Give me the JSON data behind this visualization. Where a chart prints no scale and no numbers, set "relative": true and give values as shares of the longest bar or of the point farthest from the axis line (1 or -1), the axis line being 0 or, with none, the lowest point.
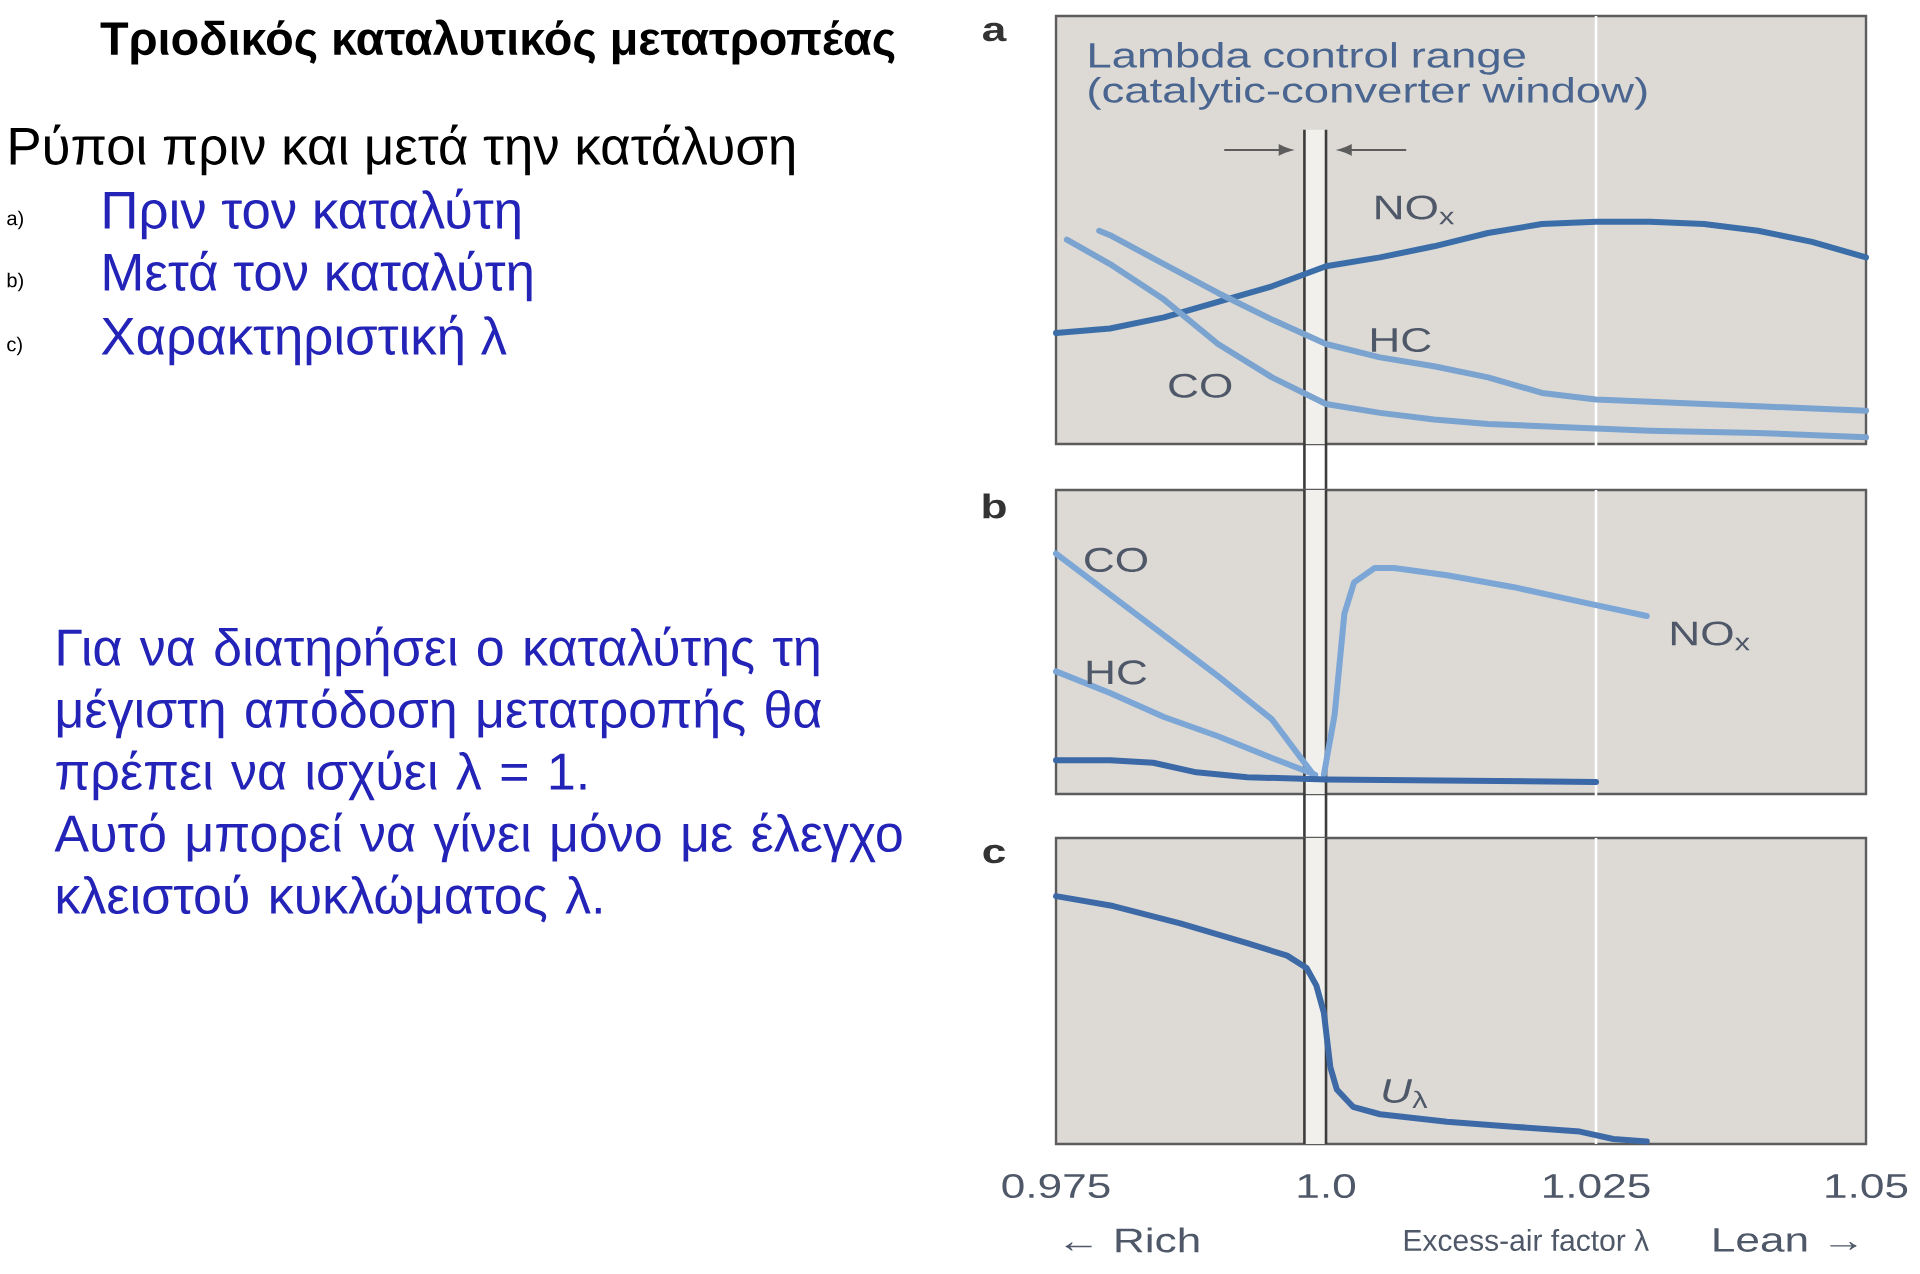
{
  "chart_data": [
    {
      "type": "other",
      "title": "Τριοδικός καταλυτικός μετατροπέας",
      "subtitle": "Ρύποι πριν και μετά την κατάλυση",
      "annotations": [
        "a)",
        "Πριν τον καταλύτη",
        "b)",
        "Μετά τον καταλύτη",
        "c)",
        "Χαρακτηριστική λ",
        "Για να διατηρήσει ο καταλύτης τη μέγιστη απόδοση μετατροπής θα πρέπει να ισχύει λ = 1.",
        "Αυτό μπορεί να γίνει μόνο με έλεγχο κλειστού κυκλώματος λ."
      ]
    },
    {
      "type": "line",
      "title": "a",
      "xlim": [
        0.975,
        1.05
      ],
      "relative": true,
      "tick_labels": false,
      "series": [
        {
          "name": "NO$_{x}$",
          "color": "#3b6ea8",
          "x": [
            0.975,
            0.98,
            0.985,
            0.99,
            0.995,
            1.0,
            1.005,
            1.01,
            1.015,
            1.02,
            1.025,
            1.03,
            1.035,
            1.04,
            1.045,
            1.05
          ],
          "values": [
            0.5,
            0.52,
            0.57,
            0.64,
            0.71,
            0.8,
            0.84,
            0.89,
            0.95,
            0.99,
            1.0,
            1.0,
            0.99,
            0.96,
            0.91,
            0.84
          ]
        },
        {
          "name": "HC",
          "color": "#7ba3cf",
          "x": [
            0.979,
            0.98,
            0.985,
            0.99,
            0.995,
            1.0,
            1.005,
            1.01,
            1.015,
            1.02,
            1.025,
            1.03,
            1.04,
            1.05
          ],
          "values": [
            0.96,
            0.94,
            0.81,
            0.68,
            0.56,
            0.45,
            0.39,
            0.35,
            0.3,
            0.23,
            0.2,
            0.19,
            0.17,
            0.15
          ]
        },
        {
          "name": "CO",
          "color": "#7ba3cf",
          "x": [
            0.976,
            0.98,
            0.985,
            0.99,
            0.995,
            1.0,
            1.005,
            1.01,
            1.015,
            1.02,
            1.03,
            1.04,
            1.05
          ],
          "values": [
            0.92,
            0.81,
            0.65,
            0.45,
            0.3,
            0.18,
            0.14,
            0.11,
            0.09,
            0.08,
            0.06,
            0.05,
            0.03
          ]
        }
      ],
      "bands": [
        {
          "axis": "x",
          "from": 0.998,
          "to": 1.0,
          "label": "Lambda control range (catalytic-converter window)",
          "color": "#f1f0ec"
        }
      ],
      "ref_lines": [
        {
          "axis": "x",
          "value": 0.998,
          "color": "#3c3c3c"
        },
        {
          "axis": "x",
          "value": 1.0,
          "color": "#3c3c3c"
        },
        {
          "axis": "x",
          "value": 1.025,
          "color": "#ffffff"
        }
      ]
    },
    {
      "type": "line",
      "title": "b",
      "xlim": [
        0.975,
        1.05
      ],
      "relative": true,
      "tick_labels": false,
      "series": [
        {
          "name": "CO",
          "color": "#7ca6d6",
          "x": [
            0.975,
            0.98,
            0.985,
            0.99,
            0.995,
            0.999
          ],
          "values": [
            1.0,
            0.83,
            0.66,
            0.49,
            0.31,
            0.07
          ]
        },
        {
          "name": "HC",
          "color": "#7ca6d6",
          "x": [
            0.975,
            0.98,
            0.985,
            0.99,
            0.995,
            0.999
          ],
          "values": [
            0.51,
            0.42,
            0.32,
            0.24,
            0.15,
            0.08
          ]
        },
        {
          "name": "NO$_{x}$",
          "color": "#7ca6d6",
          "x": [
            0.9998,
            1.0008,
            1.0017,
            1.0026,
            1.0045,
            1.0063,
            1.0112,
            1.0174,
            1.0235,
            1.0297
          ],
          "values": [
            0.08,
            0.33,
            0.75,
            0.88,
            0.94,
            0.94,
            0.91,
            0.86,
            0.8,
            0.74
          ]
        },
        {
          "color": "#3b68a6",
          "x": [
            0.975,
            0.98,
            0.984,
            0.988,
            0.9927,
            1.0,
            1.025
          ],
          "values": [
            0.14,
            0.14,
            0.13,
            0.09,
            0.07,
            0.06,
            0.05
          ]
        }
      ],
      "bands": [
        {
          "axis": "x",
          "from": 0.998,
          "to": 1.0,
          "color": "#f1f0ec"
        }
      ],
      "ref_lines": [
        {
          "axis": "x",
          "value": 0.998,
          "color": "#3c3c3c"
        },
        {
          "axis": "x",
          "value": 1.0,
          "color": "#3c3c3c"
        },
        {
          "axis": "x",
          "value": 1.025,
          "color": "#ffffff"
        }
      ]
    },
    {
      "type": "line",
      "title": "c",
      "xlabel": "Excess-air factor λ",
      "annotations": [
        "← Rich",
        "Lean →"
      ],
      "xlim": [
        0.975,
        1.05
      ],
      "xticks": [
        0.975,
        {
          "value": 1.0,
          "label": "1.0"
        },
        1.025,
        1.05
      ],
      "relative": true,
      "tick_labels": "x",
      "series": [
        {
          "name": "*U*$_{λ}$",
          "color": "#3d6aa6",
          "x": [
            0.975,
            0.9803,
            0.9865,
            0.9927,
            0.9964,
            0.9982,
            0.9991,
            0.9998,
            1.0001,
            1.0004,
            1.001,
            1.0025,
            1.005,
            1.0112,
            1.0173,
            1.0235,
            1.0266,
            1.0297
          ],
          "values": [
            1.0,
            0.96,
            0.89,
            0.81,
            0.76,
            0.71,
            0.64,
            0.53,
            0.42,
            0.31,
            0.22,
            0.15,
            0.12,
            0.09,
            0.07,
            0.05,
            0.02,
            0.01
          ]
        }
      ],
      "bands": [
        {
          "axis": "x",
          "from": 0.998,
          "to": 1.0,
          "color": "#f1f0ec"
        }
      ],
      "ref_lines": [
        {
          "axis": "x",
          "value": 0.998,
          "color": "#3c3c3c"
        },
        {
          "axis": "x",
          "value": 1.0,
          "color": "#3c3c3c"
        },
        {
          "axis": "x",
          "value": 1.025,
          "color": "#ffffff"
        }
      ]
    }
  ]
}
